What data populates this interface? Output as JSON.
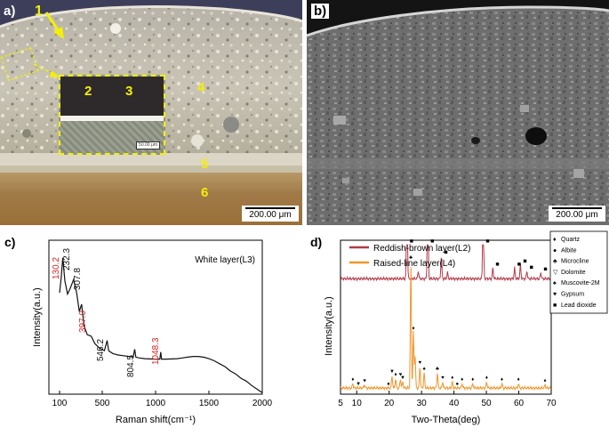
{
  "panel_a": {
    "letter": "a)",
    "markers": [
      "1",
      "2",
      "3",
      "4",
      "5",
      "6"
    ],
    "inset_scale": "50.00 μm",
    "scale_bar": "200.00 μm"
  },
  "panel_b": {
    "letter": "b)",
    "scale_bar": "200.00 μm"
  },
  "chart_data": [
    {
      "type": "line",
      "panel": "c)",
      "annotation": "White layer(L3)",
      "xlabel": "Raman shift(cm⁻¹)",
      "ylabel": "Intensity(a.u.)",
      "xlim": [
        0,
        2000
      ],
      "xticks": [
        "100",
        "500",
        "1000",
        "1500",
        "2000"
      ],
      "xtick_values": [
        100,
        500,
        1000,
        1500,
        2000
      ],
      "peaks": [
        {
          "x": 130.2,
          "label": "130.2",
          "color": "#e02020"
        },
        {
          "x": 232.3,
          "label": "232.3",
          "color": "#111111"
        },
        {
          "x": 307.8,
          "label": "307.8",
          "color": "#111111"
        },
        {
          "x": 397.0,
          "label": "397.0",
          "color": "#e02020"
        },
        {
          "x": 546.2,
          "label": "546.2",
          "color": "#111111"
        },
        {
          "x": 804.5,
          "label": "804.5",
          "color": "#111111"
        },
        {
          "x": 1048.3,
          "label": "1048.3",
          "color": "#e02020"
        }
      ],
      "series": [
        {
          "color": "#111111",
          "x": [
            100,
            115,
            130,
            150,
            175,
            200,
            232,
            260,
            285,
            307,
            330,
            360,
            397,
            430,
            470,
            520,
            546,
            560,
            600,
            650,
            700,
            750,
            790,
            804,
            815,
            850,
            900,
            950,
            1000,
            1040,
            1048,
            1056,
            1100,
            1150,
            1200,
            1250,
            1300,
            1350,
            1400,
            1450,
            1500,
            1550,
            1600,
            1650,
            1700,
            1750,
            1800,
            1850,
            1900,
            1950,
            2000
          ],
          "y": [
            0.7,
            0.8,
            0.94,
            0.78,
            0.69,
            0.73,
            0.79,
            0.7,
            0.57,
            0.62,
            0.47,
            0.41,
            0.4,
            0.35,
            0.32,
            0.3,
            0.37,
            0.3,
            0.28,
            0.27,
            0.265,
            0.26,
            0.255,
            0.31,
            0.255,
            0.25,
            0.245,
            0.243,
            0.242,
            0.242,
            0.29,
            0.242,
            0.242,
            0.243,
            0.245,
            0.25,
            0.255,
            0.26,
            0.26,
            0.255,
            0.245,
            0.23,
            0.21,
            0.19,
            0.16,
            0.14,
            0.11,
            0.09,
            0.06,
            0.035,
            0.01
          ]
        }
      ]
    },
    {
      "type": "line",
      "panel": "d)",
      "xlabel": "Two-Theta(deg)",
      "ylabel": "Intensity(a.u.)",
      "xlim": [
        5,
        70
      ],
      "xticks": [
        "5",
        "10",
        "20",
        "30",
        "40",
        "50",
        "60",
        "70"
      ],
      "xtick_values": [
        5,
        10,
        20,
        30,
        40,
        50,
        60,
        70
      ],
      "legend_position": "top-left",
      "series": [
        {
          "name": "Reddish-brown layer(L2)",
          "color": "#b23a48",
          "baseline": 0.75,
          "peaks": [
            [
              25.5,
              0.63
            ],
            [
              29.0,
              0.05
            ],
            [
              31.9,
              0.64
            ],
            [
              36.1,
              0.15
            ],
            [
              38.0,
              0.04
            ],
            [
              49.0,
              0.53
            ],
            [
              52.0,
              0.07
            ],
            [
              58.7,
              0.07
            ],
            [
              60.5,
              0.09
            ],
            [
              62.5,
              0.05
            ],
            [
              66.8,
              0.04
            ]
          ]
        },
        {
          "name": "Raised-line layer(L4)",
          "color": "#f0962c",
          "baseline": 0.04,
          "peaks": [
            [
              8.8,
              0.03
            ],
            [
              12.4,
              0.02
            ],
            [
              20.9,
              0.08
            ],
            [
              22.0,
              0.06
            ],
            [
              23.5,
              0.06
            ],
            [
              24.2,
              0.04
            ],
            [
              26.7,
              0.82
            ],
            [
              27.5,
              0.36
            ],
            [
              28.0,
              0.22
            ],
            [
              29.5,
              0.14
            ],
            [
              30.8,
              0.1
            ],
            [
              34.9,
              0.1
            ],
            [
              36.5,
              0.04
            ],
            [
              39.5,
              0.04
            ],
            [
              42.5,
              0.03
            ],
            [
              45.8,
              0.03
            ],
            [
              50.1,
              0.04
            ],
            [
              54.8,
              0.03
            ],
            [
              59.9,
              0.03
            ],
            [
              68.1,
              0.02
            ]
          ]
        }
      ],
      "phase_legend": [
        {
          "symbol": "♦",
          "name": "Quartz"
        },
        {
          "symbol": "●",
          "name": "Albite"
        },
        {
          "symbol": "♣",
          "name": "Microcline"
        },
        {
          "symbol": "▽",
          "name": "Dolomite"
        },
        {
          "symbol": "♠",
          "name": "Muscovite-2M"
        },
        {
          "symbol": "♥",
          "name": "Gypsum"
        },
        {
          "symbol": "■",
          "name": "Lead dioxide"
        }
      ],
      "top_markers": {
        "symbol": "■",
        "x": [
          25.5,
          31.9,
          36.1,
          49.0,
          52.0,
          58.7,
          60.5,
          62.5,
          66.8
        ]
      },
      "bottom_markers": [
        {
          "symbol": "♦",
          "x": 8.8
        },
        {
          "symbol": "▼",
          "x": 10.5
        },
        {
          "symbol": "♥",
          "x": 12.4
        },
        {
          "symbol": "♠",
          "x": 19.8
        },
        {
          "symbol": "▼",
          "x": 20.9
        },
        {
          "symbol": "♦",
          "x": 22.0
        },
        {
          "symbol": "♥",
          "x": 23.5
        },
        {
          "symbol": "▼",
          "x": 24.2
        },
        {
          "symbol": "♣",
          "x": 26.7
        },
        {
          "symbol": "♦",
          "x": 27.5
        },
        {
          "symbol": "♥",
          "x": 29.5
        },
        {
          "symbol": "♠",
          "x": 30.8
        },
        {
          "symbol": "♣",
          "x": 34.9
        },
        {
          "symbol": "♥",
          "x": 36.5
        },
        {
          "symbol": "♦",
          "x": 39.5
        },
        {
          "symbol": "●",
          "x": 41.0
        },
        {
          "symbol": "♦",
          "x": 42.5
        },
        {
          "symbol": "♦",
          "x": 45.8
        },
        {
          "symbol": "♦",
          "x": 50.1
        },
        {
          "symbol": "♦",
          "x": 54.8
        },
        {
          "symbol": "♦",
          "x": 59.9
        },
        {
          "symbol": "♦",
          "x": 68.1
        }
      ]
    }
  ]
}
